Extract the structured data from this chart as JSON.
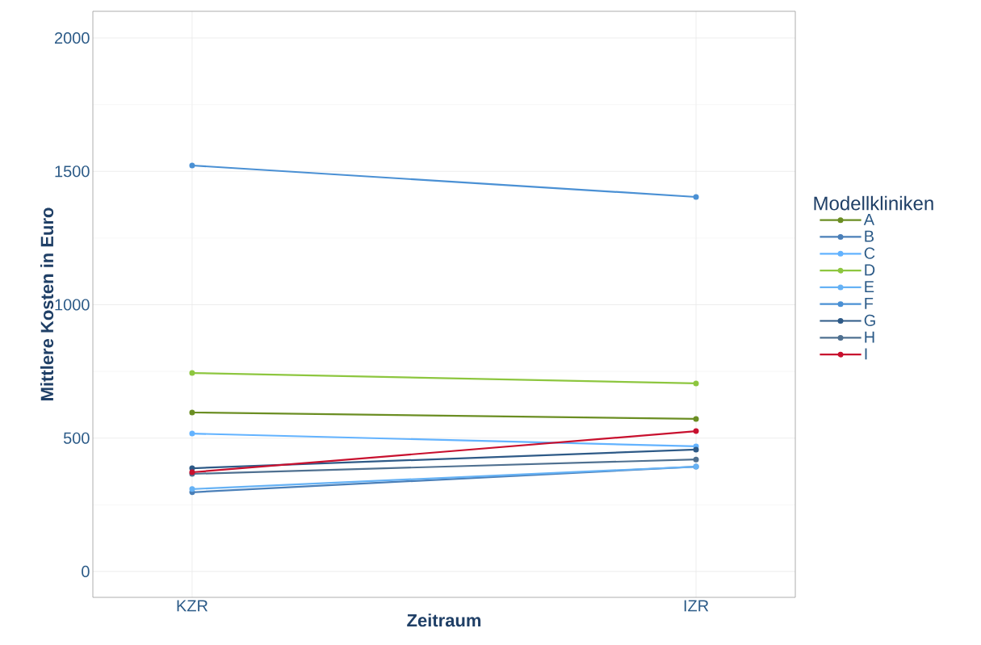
{
  "chart_data": {
    "type": "line",
    "xlabel": "Zeitraum",
    "ylabel": "Mittlere Kosten in Euro",
    "legend_title": "Modellkliniken",
    "categories": [
      "KZR",
      "IZR"
    ],
    "series": [
      {
        "name": "A",
        "color": "#6b8e23",
        "values": [
          596,
          572
        ]
      },
      {
        "name": "B",
        "color": "#4a7fb8",
        "values": [
          297,
          393
        ]
      },
      {
        "name": "C",
        "color": "#63b3ff",
        "values": [
          517,
          469
        ]
      },
      {
        "name": "D",
        "color": "#8dc63f",
        "values": [
          744,
          705
        ]
      },
      {
        "name": "E",
        "color": "#66b2f5",
        "values": [
          309,
          393
        ]
      },
      {
        "name": "F",
        "color": "#4a90d4",
        "values": [
          1522,
          1404
        ]
      },
      {
        "name": "G",
        "color": "#2e5a87",
        "values": [
          387,
          457
        ]
      },
      {
        "name": "H",
        "color": "#4f7090",
        "values": [
          366,
          420
        ]
      },
      {
        "name": "I",
        "color": "#c8102e",
        "values": [
          372,
          526
        ]
      }
    ],
    "ylim": [
      -97,
      2100
    ],
    "yticks": [
      0,
      500,
      1000,
      1500,
      2000
    ],
    "grid": true,
    "legend": "right",
    "marker": "circle",
    "line_style": "solid"
  }
}
